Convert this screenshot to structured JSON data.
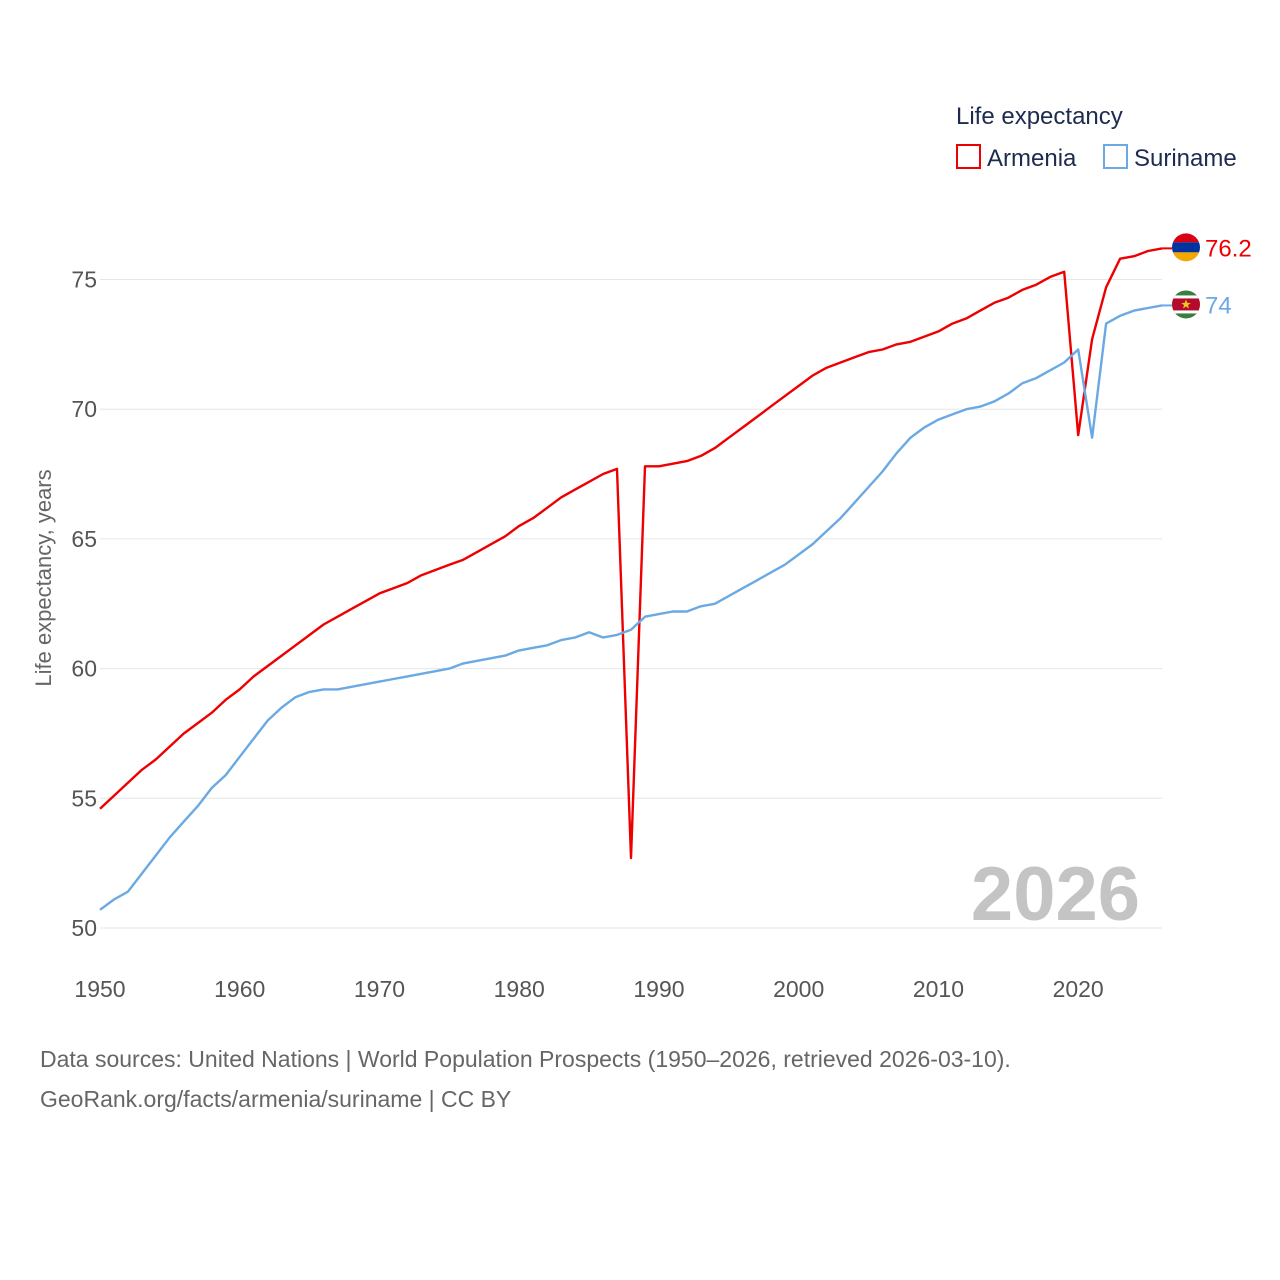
{
  "chart_data": {
    "type": "line",
    "title": "Life expectancy",
    "ylabel": "Life expectancy, years",
    "xlabel": "",
    "xlim": [
      1950,
      2026
    ],
    "ylim": [
      50,
      77
    ],
    "yticks": [
      50,
      55,
      60,
      65,
      70,
      75
    ],
    "xticks": [
      1950,
      1960,
      1970,
      1980,
      1990,
      2000,
      2010,
      2020
    ],
    "grid": true,
    "legend_position": "top-right",
    "current_year": "2026",
    "x": [
      1950,
      1951,
      1952,
      1953,
      1954,
      1955,
      1956,
      1957,
      1958,
      1959,
      1960,
      1961,
      1962,
      1963,
      1964,
      1965,
      1966,
      1967,
      1968,
      1969,
      1970,
      1971,
      1972,
      1973,
      1974,
      1975,
      1976,
      1977,
      1978,
      1979,
      1980,
      1981,
      1982,
      1983,
      1984,
      1985,
      1986,
      1987,
      1988,
      1989,
      1990,
      1991,
      1992,
      1993,
      1994,
      1995,
      1996,
      1997,
      1998,
      1999,
      2000,
      2001,
      2002,
      2003,
      2004,
      2005,
      2006,
      2007,
      2008,
      2009,
      2010,
      2011,
      2012,
      2013,
      2014,
      2015,
      2016,
      2017,
      2018,
      2019,
      2020,
      2021,
      2022,
      2023,
      2024,
      2025,
      2026
    ],
    "series": [
      {
        "name": "Armenia",
        "color": "#ee0000",
        "flag": "armenia-flag",
        "end_label": "76.2",
        "values": [
          54.6,
          55.1,
          55.6,
          56.1,
          56.5,
          57.0,
          57.5,
          57.9,
          58.3,
          58.8,
          59.2,
          59.7,
          60.1,
          60.5,
          60.9,
          61.3,
          61.7,
          62.0,
          62.3,
          62.6,
          62.9,
          63.1,
          63.3,
          63.6,
          63.8,
          64.0,
          64.2,
          64.5,
          64.8,
          65.1,
          65.5,
          65.8,
          66.2,
          66.6,
          66.9,
          67.2,
          67.5,
          67.7,
          52.7,
          67.8,
          67.8,
          67.9,
          68.0,
          68.2,
          68.5,
          68.9,
          69.3,
          69.7,
          70.1,
          70.5,
          70.9,
          71.3,
          71.6,
          71.8,
          72.0,
          72.2,
          72.3,
          72.5,
          72.6,
          72.8,
          73.0,
          73.3,
          73.5,
          73.8,
          74.1,
          74.3,
          74.6,
          74.8,
          75.1,
          75.3,
          69.0,
          72.7,
          74.7,
          75.8,
          75.9,
          76.1,
          76.2
        ]
      },
      {
        "name": "Suriname",
        "color": "#6aa9e3",
        "flag": "suriname-flag",
        "end_label": "74",
        "values": [
          50.7,
          51.1,
          51.4,
          52.1,
          52.8,
          53.5,
          54.1,
          54.7,
          55.4,
          55.9,
          56.6,
          57.3,
          58.0,
          58.5,
          58.9,
          59.1,
          59.2,
          59.2,
          59.3,
          59.4,
          59.5,
          59.6,
          59.7,
          59.8,
          59.9,
          60.0,
          60.2,
          60.3,
          60.4,
          60.5,
          60.7,
          60.8,
          60.9,
          61.1,
          61.2,
          61.4,
          61.2,
          61.3,
          61.5,
          62.0,
          62.1,
          62.2,
          62.2,
          62.4,
          62.5,
          62.8,
          63.1,
          63.4,
          63.7,
          64.0,
          64.4,
          64.8,
          65.3,
          65.8,
          66.4,
          67.0,
          67.6,
          68.3,
          68.9,
          69.3,
          69.6,
          69.8,
          70.0,
          70.1,
          70.3,
          70.6,
          71.0,
          71.2,
          71.5,
          71.8,
          72.3,
          68.9,
          73.3,
          73.6,
          73.8,
          73.9,
          74.0
        ]
      }
    ]
  },
  "footer": {
    "line1": "Data sources: United Nations | World Population Prospects (1950–2026, retrieved 2026-03-10).",
    "line2": "GeoRank.org/facts/armenia/suriname | CC BY"
  }
}
